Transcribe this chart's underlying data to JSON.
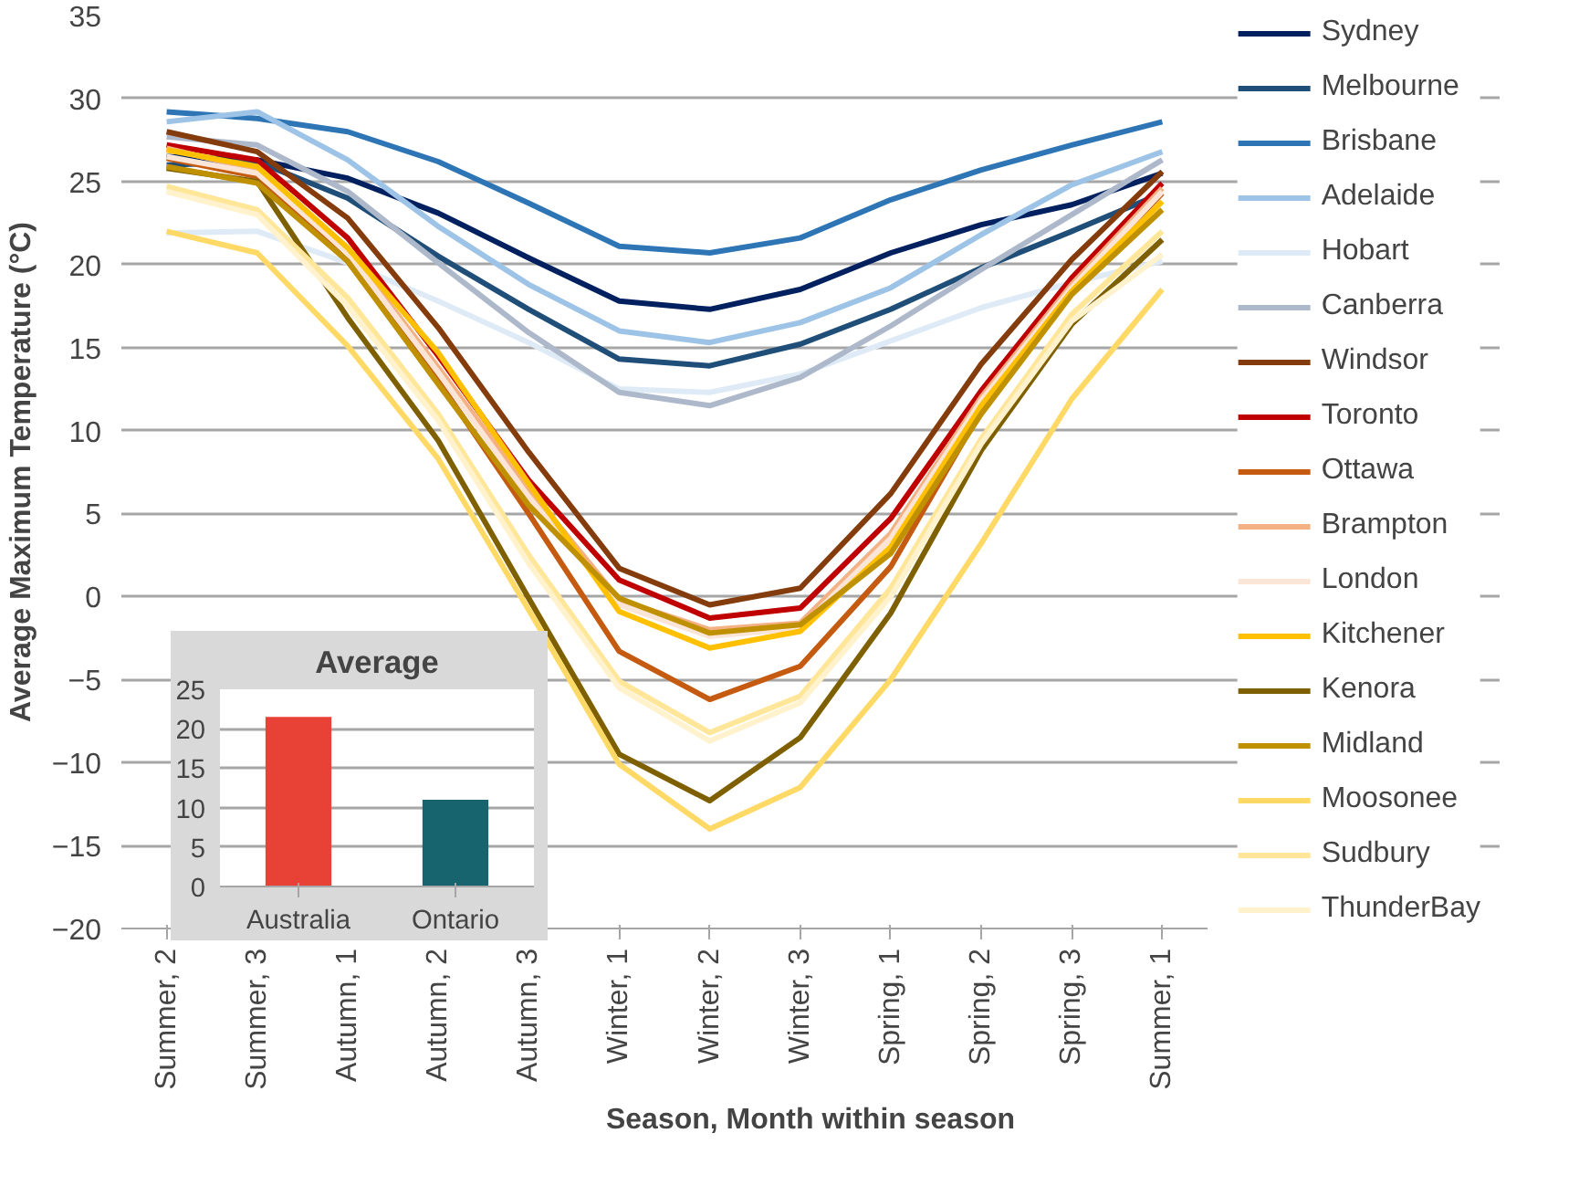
{
  "chart_data": [
    {
      "type": "line",
      "xlabel": "Season, Month within season",
      "ylabel": "Average Maximum Temperature (°C)",
      "categories": [
        "Summer, 2",
        "Summer, 3",
        "Autumn, 1",
        "Autumn, 2",
        "Autumn, 3",
        "Winter, 1",
        "Winter, 2",
        "Winter, 3",
        "Spring, 1",
        "Spring, 2",
        "Spring, 3",
        "Summer, 1"
      ],
      "ylim": [
        -20,
        35
      ],
      "yticks": [
        -20,
        -15,
        -10,
        -5,
        0,
        5,
        10,
        15,
        20,
        25,
        30,
        35
      ],
      "grid": "y",
      "legend": "right",
      "series": [
        {
          "name": "Sydney",
          "color": "#002060",
          "values": [
            26.5,
            26.3,
            25.2,
            23.1,
            20.4,
            17.8,
            17.3,
            18.5,
            20.7,
            22.4,
            23.6,
            25.5
          ]
        },
        {
          "name": "Melbourne",
          "color": "#1f4e79",
          "values": [
            26.0,
            26.2,
            24.0,
            20.5,
            17.3,
            14.3,
            13.9,
            15.2,
            17.3,
            19.8,
            22.0,
            24.3
          ]
        },
        {
          "name": "Brisbane",
          "color": "#2e75b6",
          "values": [
            29.2,
            28.8,
            28.0,
            26.2,
            23.7,
            21.1,
            20.7,
            21.6,
            23.9,
            25.7,
            27.2,
            28.6
          ]
        },
        {
          "name": "Adelaide",
          "color": "#9dc3e6",
          "values": [
            28.6,
            29.2,
            26.3,
            22.3,
            18.8,
            16.0,
            15.3,
            16.5,
            18.6,
            21.8,
            24.8,
            26.8
          ]
        },
        {
          "name": "Hobart",
          "color": "#deebf7",
          "values": [
            21.9,
            22.0,
            20.1,
            17.8,
            15.3,
            12.5,
            12.3,
            13.4,
            15.4,
            17.4,
            18.9,
            20.2
          ]
        },
        {
          "name": "Canberra",
          "color": "#adb9ca",
          "values": [
            27.7,
            27.2,
            24.4,
            20.1,
            15.9,
            12.3,
            11.5,
            13.2,
            16.3,
            19.7,
            23.0,
            26.3
          ]
        },
        {
          "name": "Windsor",
          "color": "#843c0c",
          "values": [
            28.0,
            26.8,
            22.8,
            16.2,
            8.7,
            1.7,
            -0.5,
            0.5,
            6.2,
            14.0,
            20.3,
            25.6
          ]
        },
        {
          "name": "Toronto",
          "color": "#c00000",
          "values": [
            27.2,
            26.3,
            21.6,
            14.5,
            7.0,
            1.0,
            -1.3,
            -0.7,
            4.7,
            12.4,
            19.2,
            24.9
          ]
        },
        {
          "name": "Ottawa",
          "color": "#c55a11",
          "values": [
            26.4,
            25.3,
            20.2,
            13.0,
            5.0,
            -3.3,
            -6.2,
            -4.2,
            1.8,
            11.2,
            18.6,
            24.3
          ]
        },
        {
          "name": "Brampton",
          "color": "#f4b183",
          "values": [
            27.0,
            25.7,
            20.9,
            13.8,
            6.5,
            -0.2,
            -2.0,
            -1.6,
            3.8,
            12.0,
            18.8,
            24.6
          ]
        },
        {
          "name": "London",
          "color": "#fbe5d6",
          "values": [
            26.5,
            25.5,
            20.7,
            13.5,
            6.0,
            -0.5,
            -2.4,
            -1.9,
            3.5,
            11.8,
            18.6,
            24.4
          ]
        },
        {
          "name": "Kitchener",
          "color": "#ffc000",
          "values": [
            26.9,
            25.9,
            21.0,
            14.7,
            6.8,
            -0.9,
            -3.1,
            -2.1,
            3.0,
            11.5,
            18.4,
            23.8
          ]
        },
        {
          "name": "Kenora",
          "color": "#7f6000",
          "values": [
            25.8,
            25.0,
            16.8,
            9.4,
            -0.1,
            -9.5,
            -12.3,
            -8.5,
            -1.0,
            8.8,
            16.4,
            21.5
          ]
        },
        {
          "name": "Midland",
          "color": "#bf9000",
          "values": [
            25.9,
            24.9,
            20.2,
            12.8,
            5.5,
            -0.1,
            -2.2,
            -1.7,
            2.6,
            11.0,
            18.2,
            23.3
          ]
        },
        {
          "name": "Moosonee",
          "color": "#ffd966",
          "values": [
            22.0,
            20.7,
            15.1,
            8.3,
            -0.8,
            -10.1,
            -14.0,
            -11.5,
            -5.0,
            3.2,
            11.9,
            18.5
          ]
        },
        {
          "name": "Sudbury",
          "color": "#ffe699",
          "values": [
            24.7,
            23.3,
            18.0,
            11.0,
            2.5,
            -5.1,
            -8.2,
            -6.0,
            0.5,
            9.5,
            17.0,
            22.0
          ]
        },
        {
          "name": "ThunderBay",
          "color": "#fff2cc",
          "values": [
            24.4,
            23.0,
            17.5,
            10.6,
            2.0,
            -5.5,
            -8.7,
            -6.4,
            0.0,
            9.2,
            16.6,
            20.6
          ]
        }
      ]
    },
    {
      "type": "bar",
      "title": "Average",
      "categories": [
        "Australia",
        "Ontario"
      ],
      "values": [
        21.5,
        11.0
      ],
      "colors": [
        "#e84135",
        "#17646e"
      ],
      "ylim": [
        0,
        25
      ],
      "yticks": [
        0,
        5,
        10,
        15,
        20,
        25
      ],
      "grid": "y"
    }
  ]
}
